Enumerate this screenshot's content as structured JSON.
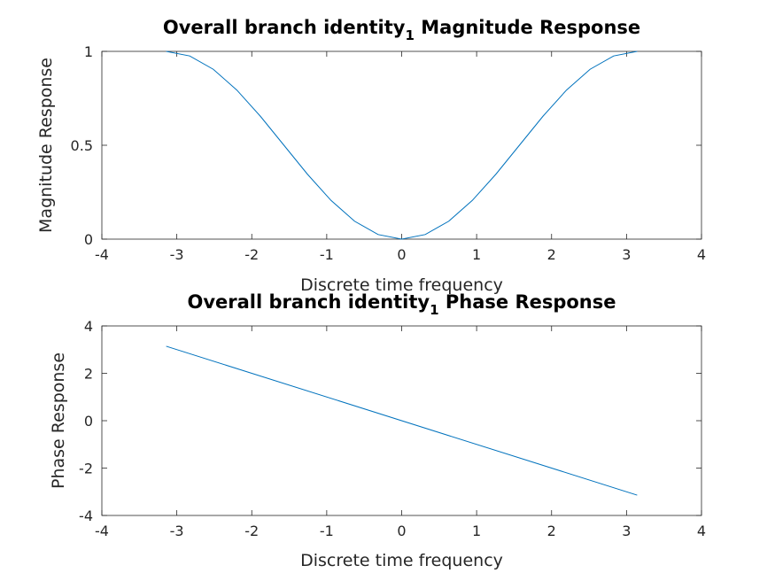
{
  "chart_data": [
    {
      "type": "line",
      "title": "Overall branch identity",
      "title_subscript": "1",
      "title_suffix": "Magnitude Response",
      "xlabel": "Discrete time frequency",
      "ylabel": "Magnitude Response",
      "xlim": [
        -4,
        4
      ],
      "ylim": [
        0,
        1
      ],
      "xticks": [
        -4,
        -3,
        -2,
        -1,
        0,
        1,
        2,
        3,
        4
      ],
      "yticks": [
        0,
        0.5,
        1
      ],
      "xtick_labels": [
        "-4",
        "-3",
        "-2",
        "-1",
        "0",
        "1",
        "2",
        "3",
        "4"
      ],
      "ytick_labels": [
        "0",
        "0.5",
        "1"
      ],
      "grid": false,
      "color": "#0072BD",
      "series": [
        {
          "x": [
            -3.1416,
            -2.8274,
            -2.5133,
            -2.1991,
            -1.885,
            -1.5708,
            -1.2566,
            -0.9425,
            -0.6283,
            -0.3142,
            0,
            0.3142,
            0.6283,
            0.9425,
            1.2566,
            1.5708,
            1.885,
            2.1991,
            2.5133,
            2.8274,
            3.1416
          ],
          "y": [
            1,
            0.9755,
            0.9045,
            0.7939,
            0.6545,
            0.5,
            0.3455,
            0.2061,
            0.0955,
            0.0245,
            0,
            0.0245,
            0.0955,
            0.2061,
            0.3455,
            0.5,
            0.6545,
            0.7939,
            0.9045,
            0.9755,
            1
          ]
        }
      ]
    },
    {
      "type": "line",
      "title": "Overall branch identity",
      "title_subscript": "1",
      "title_suffix": "Phase Response",
      "xlabel": "Discrete time frequency",
      "ylabel": "Phase Response",
      "xlim": [
        -4,
        4
      ],
      "ylim": [
        -4,
        4
      ],
      "xticks": [
        -4,
        -3,
        -2,
        -1,
        0,
        1,
        2,
        3,
        4
      ],
      "yticks": [
        -4,
        -2,
        0,
        2,
        4
      ],
      "xtick_labels": [
        "-4",
        "-3",
        "-2",
        "-1",
        "0",
        "1",
        "2",
        "3",
        "4"
      ],
      "ytick_labels": [
        "-4",
        "-2",
        "0",
        "2",
        "4"
      ],
      "grid": false,
      "color": "#0072BD",
      "series": [
        {
          "x": [
            -3.1416,
            3.1416
          ],
          "y": [
            3.1416,
            -3.1416
          ]
        }
      ]
    }
  ]
}
